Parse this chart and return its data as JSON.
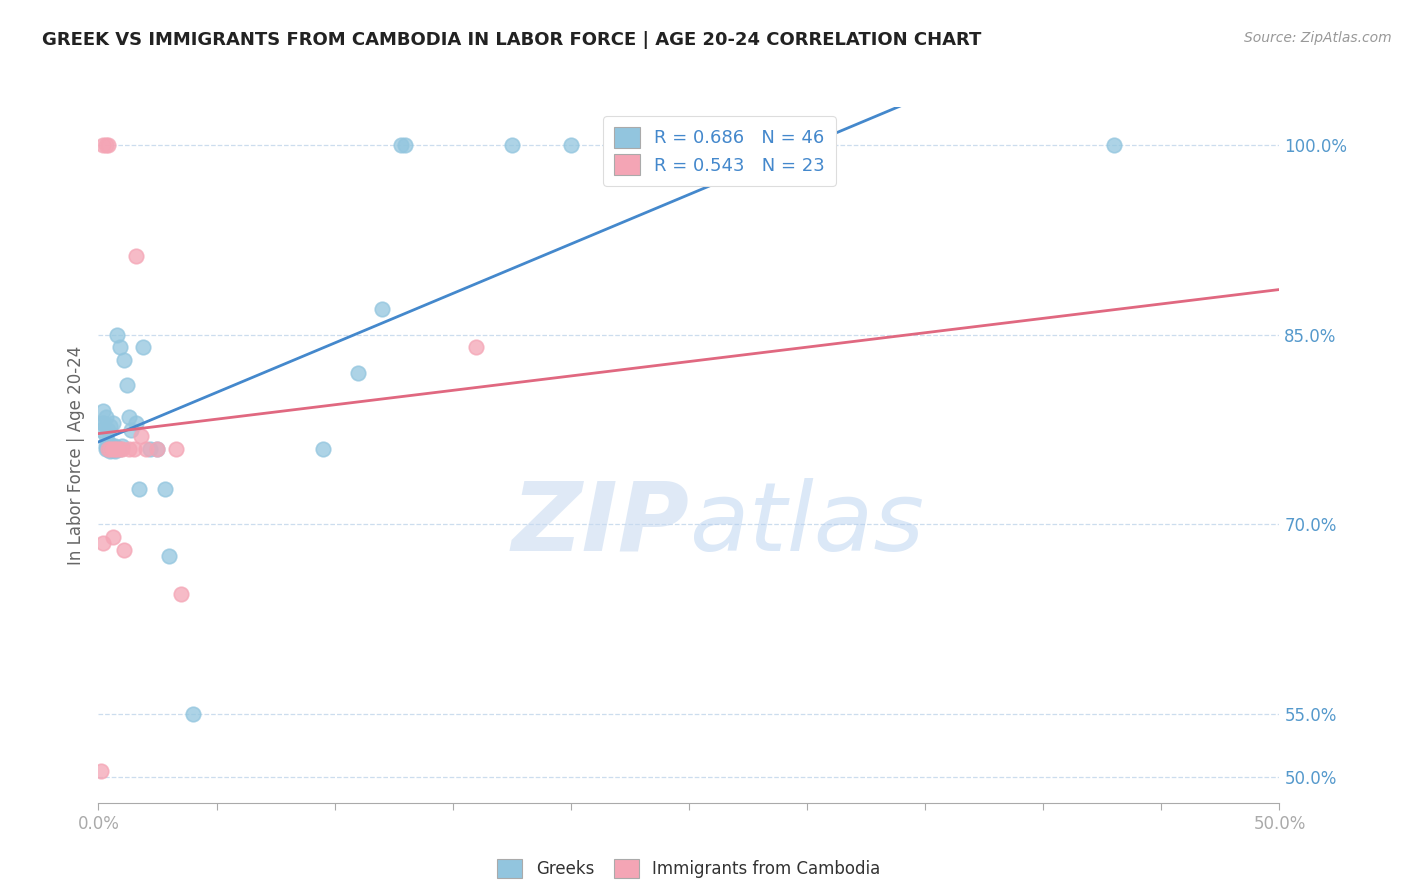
{
  "title": "GREEK VS IMMIGRANTS FROM CAMBODIA IN LABOR FORCE | AGE 20-24 CORRELATION CHART",
  "source": "Source: ZipAtlas.com",
  "ylabel": "In Labor Force | Age 20-24",
  "xlim": [
    0.0,
    0.5
  ],
  "ylim": [
    0.48,
    1.03
  ],
  "xticks": [
    0.0,
    0.05,
    0.1,
    0.15,
    0.2,
    0.25,
    0.3,
    0.35,
    0.4,
    0.45,
    0.5
  ],
  "xticklabels": [
    "0.0%",
    "",
    "",
    "",
    "",
    "",
    "",
    "",
    "",
    "",
    "50.0%"
  ],
  "ytick_positions": [
    0.5,
    0.55,
    0.7,
    0.85,
    1.0
  ],
  "ytick_labels": [
    "50.0%",
    "55.0%",
    "70.0%",
    "85.0%",
    "100.0%"
  ],
  "legend_R_blue": "R = 0.686",
  "legend_N_blue": "N = 46",
  "legend_R_pink": "R = 0.543",
  "legend_N_pink": "N = 23",
  "blue_color": "#92c5de",
  "pink_color": "#f4a5b5",
  "blue_line_color": "#4488cc",
  "pink_line_color": "#e06880",
  "watermark_zip": "ZIP",
  "watermark_atlas": "atlas",
  "blue_x": [
    0.001,
    0.002,
    0.002,
    0.002,
    0.003,
    0.003,
    0.003,
    0.003,
    0.004,
    0.004,
    0.004,
    0.004,
    0.005,
    0.005,
    0.005,
    0.006,
    0.006,
    0.006,
    0.007,
    0.007,
    0.007,
    0.008,
    0.008,
    0.009,
    0.009,
    0.01,
    0.011,
    0.012,
    0.013,
    0.014,
    0.016,
    0.017,
    0.019,
    0.022,
    0.025,
    0.028,
    0.03,
    0.04,
    0.095,
    0.11,
    0.12,
    0.128,
    0.13,
    0.175,
    0.2,
    0.43
  ],
  "blue_y": [
    0.775,
    0.78,
    0.78,
    0.79,
    0.76,
    0.762,
    0.77,
    0.785,
    0.76,
    0.762,
    0.765,
    0.775,
    0.758,
    0.76,
    0.778,
    0.76,
    0.762,
    0.78,
    0.758,
    0.76,
    0.762,
    0.76,
    0.85,
    0.76,
    0.84,
    0.762,
    0.83,
    0.81,
    0.785,
    0.775,
    0.78,
    0.728,
    0.84,
    0.76,
    0.76,
    0.728,
    0.675,
    0.55,
    0.76,
    0.82,
    0.87,
    1.0,
    1.0,
    1.0,
    1.0,
    1.0
  ],
  "pink_x": [
    0.001,
    0.002,
    0.002,
    0.003,
    0.004,
    0.004,
    0.005,
    0.006,
    0.006,
    0.007,
    0.008,
    0.009,
    0.01,
    0.011,
    0.013,
    0.015,
    0.016,
    0.018,
    0.02,
    0.025,
    0.033,
    0.035,
    0.16
  ],
  "pink_y": [
    0.505,
    0.685,
    1.0,
    1.0,
    0.76,
    1.0,
    0.76,
    0.76,
    0.69,
    0.76,
    0.76,
    0.76,
    0.76,
    0.68,
    0.76,
    0.76,
    0.912,
    0.77,
    0.76,
    0.76,
    0.76,
    0.645,
    0.84
  ]
}
